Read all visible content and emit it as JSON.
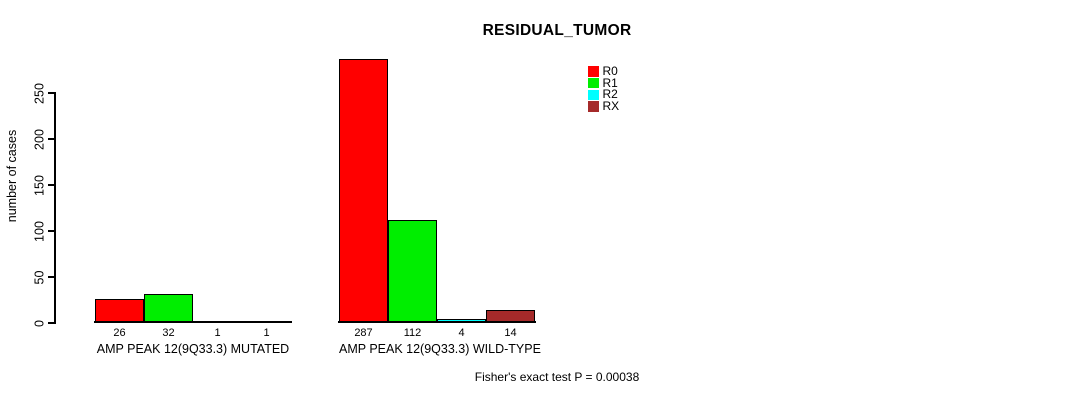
{
  "chart_data": {
    "type": "bar",
    "title": "RESIDUAL_TUMOR",
    "ylabel": "number of cases",
    "ylim": [
      0,
      250
    ],
    "yticks": [
      0,
      50,
      100,
      150,
      200,
      250
    ],
    "grid": false,
    "legend_position": "top-right",
    "categories": [
      "AMP PEAK 12(9Q33.3) MUTATED",
      "AMP PEAK 12(9Q33.3) WILD-TYPE"
    ],
    "series": [
      {
        "name": "R0",
        "color": "#FF0000",
        "values": [
          26,
          287
        ]
      },
      {
        "name": "R1",
        "color": "#00EE00",
        "values": [
          32,
          112
        ]
      },
      {
        "name": "R2",
        "color": "#00FFFF",
        "values": [
          1,
          4
        ]
      },
      {
        "name": "RX",
        "color": "#A52A2A",
        "values": [
          1,
          14
        ]
      }
    ],
    "value_labels_shown": true,
    "annotation": "Fisher's exact test P = 0.00038"
  }
}
